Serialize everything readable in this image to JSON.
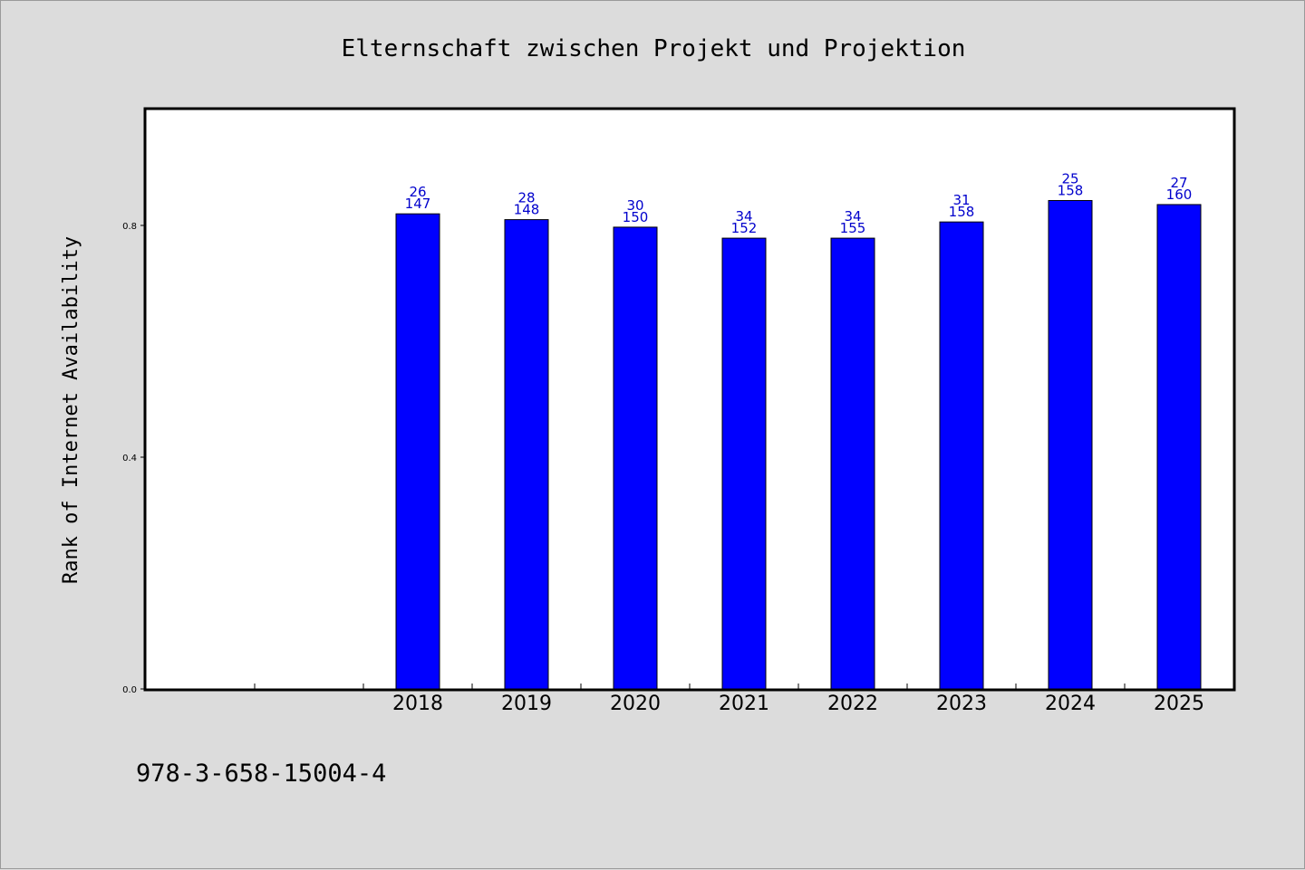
{
  "chart_data": {
    "type": "bar",
    "title": "Elternschaft zwischen Projekt und Projektion",
    "ylabel": "Rank of Internet Availability",
    "xlabel": "",
    "categories": [
      "",
      "",
      "2018",
      "2019",
      "2020",
      "2021",
      "2022",
      "2023",
      "2024",
      "2025"
    ],
    "values": [
      null,
      null,
      0.82,
      0.81,
      0.797,
      0.778,
      0.778,
      0.806,
      0.843,
      0.836
    ],
    "labels_top": [
      "",
      "",
      "26",
      "28",
      "30",
      "34",
      "34",
      "31",
      "25",
      "27"
    ],
    "labels_bottom": [
      "",
      "",
      "147",
      "148",
      "150",
      "152",
      "155",
      "158",
      "158",
      "160"
    ],
    "ylim": [
      0,
      1.0
    ],
    "yticks": [
      0.0,
      0.4,
      0.8
    ],
    "ytick_labels": [
      "0.0",
      "0.4",
      "0.8"
    ],
    "bar_color": "#0000ff",
    "label_color": "#0000cc",
    "grid": false
  },
  "footer": {
    "isbn": "978-3-658-15004-4"
  },
  "colors": {
    "background": "#dcdcdc",
    "plot_background": "#ffffff"
  }
}
